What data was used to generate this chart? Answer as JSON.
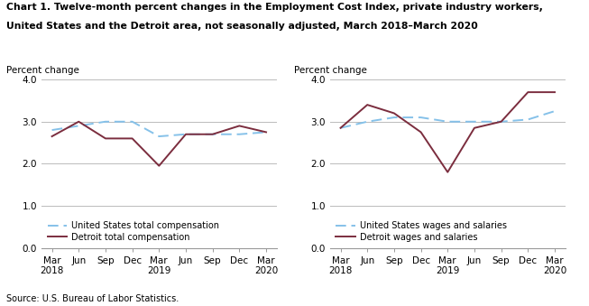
{
  "title_line1": "Chart 1. Twelve-month percent changes in the Employment Cost Index, private industry workers,",
  "title_line2": "United States and the Detroit area, not seasonally adjusted, March 2018–March 2020",
  "source": "Source: U.S. Bureau of Labor Statistics.",
  "ylabel": "Percent change",
  "x_labels": [
    "Mar\n2018",
    "Jun",
    "Sep",
    "Dec",
    "Mar\n2019",
    "Jun",
    "Sep",
    "Dec",
    "Mar\n2020"
  ],
  "x_positions": [
    0,
    1,
    2,
    3,
    4,
    5,
    6,
    7,
    8
  ],
  "ylim": [
    0.0,
    4.0
  ],
  "yticks": [
    0.0,
    1.0,
    2.0,
    3.0,
    4.0
  ],
  "chart1": {
    "us_total_comp": [
      2.8,
      2.9,
      3.0,
      3.0,
      2.65,
      2.7,
      2.7,
      2.7,
      2.75
    ],
    "detroit_total_comp": [
      2.65,
      3.0,
      2.6,
      2.6,
      1.95,
      2.7,
      2.7,
      2.9,
      2.75
    ],
    "us_label": "United States total compensation",
    "detroit_label": "Detroit total compensation"
  },
  "chart2": {
    "us_wages_salaries": [
      2.85,
      3.0,
      3.1,
      3.1,
      3.0,
      3.0,
      3.0,
      3.05,
      3.25
    ],
    "detroit_wages_salaries": [
      2.85,
      3.4,
      3.2,
      2.75,
      1.8,
      2.85,
      3.0,
      3.7,
      3.7
    ],
    "us_label": "United States wages and salaries",
    "detroit_label": "Detroit wages and salaries"
  },
  "us_color": "#85C1E9",
  "detroit_color": "#7B2D3E",
  "background_color": "#ffffff",
  "grid_color": "#bbbbbb",
  "title_fontsize": 7.8,
  "axis_fontsize": 7.5,
  "legend_fontsize": 7.0,
  "ylabel_fontsize": 7.5
}
